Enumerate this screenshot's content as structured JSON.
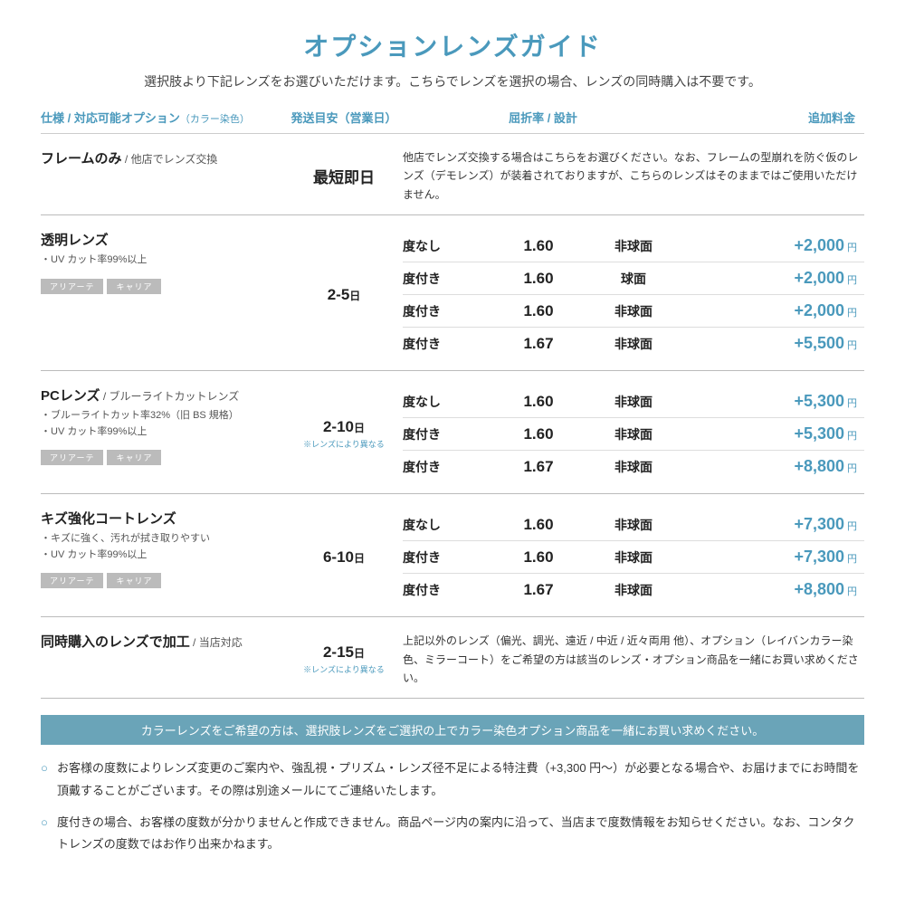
{
  "title": "オプションレンズガイド",
  "subtitle": "選択肢より下記レンズをお選びいただけます。こちらでレンズを選択の場合、レンズの同時購入は不要です。",
  "headers": {
    "spec": "仕様 / 対応可能オプション",
    "spec_small": "（カラー染色）",
    "ship": "発送目安（営業日）",
    "index": "屈折率 / 設計",
    "fee": "追加料金"
  },
  "tags": {
    "ariate": "アリアーテ",
    "career": "キャリア"
  },
  "sections": [
    {
      "title": "フレームのみ",
      "sub": " / 他店でレンズ交換",
      "lines": [],
      "show_tags": false,
      "ship": "最短即日",
      "ship_unit": "",
      "ship_note": "",
      "desc": "他店でレンズ交換する場合はこちらをお選びください。なお、フレームの型崩れを防ぐ仮のレンズ（デモレンズ）が装着されておりますが、こちらのレンズはそのままではご使用いただけません。",
      "rows": []
    },
    {
      "title": "透明レンズ",
      "sub": "",
      "lines": [
        "・UV カット率99%以上"
      ],
      "show_tags": true,
      "ship": "2-5",
      "ship_unit": "日",
      "ship_note": "",
      "desc": "",
      "rows": [
        {
          "p": "度なし",
          "i": "1.60",
          "d": "非球面",
          "f": "+2,000"
        },
        {
          "p": "度付き",
          "i": "1.60",
          "d": "球面",
          "f": "+2,000"
        },
        {
          "p": "度付き",
          "i": "1.60",
          "d": "非球面",
          "f": "+2,000"
        },
        {
          "p": "度付き",
          "i": "1.67",
          "d": "非球面",
          "f": "+5,500"
        }
      ]
    },
    {
      "title": "PCレンズ",
      "sub": " / ブルーライトカットレンズ",
      "lines": [
        "・ブルーライトカット率32%（旧 BS 規格）",
        "・UV カット率99%以上"
      ],
      "show_tags": true,
      "ship": "2-10",
      "ship_unit": "日",
      "ship_note": "※レンズにより異なる",
      "desc": "",
      "rows": [
        {
          "p": "度なし",
          "i": "1.60",
          "d": "非球面",
          "f": "+5,300"
        },
        {
          "p": "度付き",
          "i": "1.60",
          "d": "非球面",
          "f": "+5,300"
        },
        {
          "p": "度付き",
          "i": "1.67",
          "d": "非球面",
          "f": "+8,800"
        }
      ]
    },
    {
      "title": "キズ強化コートレンズ",
      "sub": "",
      "lines": [
        "・キズに強く、汚れが拭き取りやすい",
        "・UV カット率99%以上"
      ],
      "show_tags": true,
      "ship": "6-10",
      "ship_unit": "日",
      "ship_note": "",
      "desc": "",
      "rows": [
        {
          "p": "度なし",
          "i": "1.60",
          "d": "非球面",
          "f": "+7,300"
        },
        {
          "p": "度付き",
          "i": "1.60",
          "d": "非球面",
          "f": "+7,300"
        },
        {
          "p": "度付き",
          "i": "1.67",
          "d": "非球面",
          "f": "+8,800"
        }
      ]
    },
    {
      "title": "同時購入のレンズで加工",
      "sub": " / 当店対応",
      "lines": [],
      "show_tags": false,
      "ship": "2-15",
      "ship_unit": "日",
      "ship_note": "※レンズにより異なる",
      "desc": "上記以外のレンズ（偏光、調光、遠近 / 中近 / 近々両用 他）、オプション（レイバンカラー染色、ミラーコート）をご希望の方は該当のレンズ・オプション商品を一緒にお買い求めください。",
      "rows": []
    }
  ],
  "banner": "カラーレンズをご希望の方は、選択肢レンズをご選択の上でカラー染色オプション商品を一緒にお買い求めください。",
  "notes": [
    "お客様の度数によりレンズ変更のご案内や、強乱視・プリズム・レンズ径不足による特注費（+3,300 円〜）が必要となる場合や、お届けまでにお時間を頂戴することがございます。その際は別途メールにてご連絡いたします。",
    "度付きの場合、お客様の度数が分かりませんと作成できません。商品ページ内の案内に沿って、当店まで度数情報をお知らせください。なお、コンタクトレンズの度数ではお作り出来かねます。"
  ],
  "yen": "円"
}
